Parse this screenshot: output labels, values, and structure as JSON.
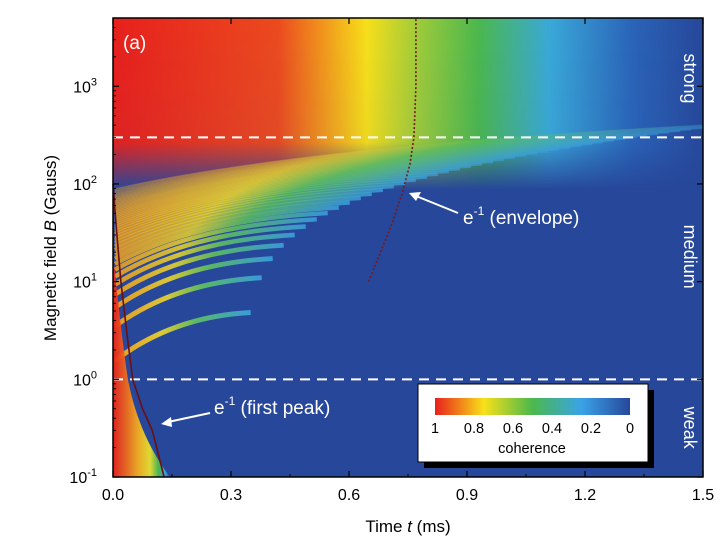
{
  "chart_data": {
    "type": "heatmap",
    "panel_label": "(a)",
    "xlabel": {
      "pre": "Time ",
      "var": "t",
      "post": " (ms)"
    },
    "ylabel": {
      "pre": "Magnetic field ",
      "var": "B",
      "post": " (Gauss)"
    },
    "xlim": [
      0,
      1.5
    ],
    "ylim": [
      0.1,
      5000
    ],
    "yscale": "log",
    "x_ticks": [
      {
        "value": 0.0,
        "label": "0.0"
      },
      {
        "value": 0.3,
        "label": "0.3"
      },
      {
        "value": 0.6,
        "label": "0.6"
      },
      {
        "value": 0.9,
        "label": "0.9"
      },
      {
        "value": 1.2,
        "label": "1.2"
      },
      {
        "value": 1.5,
        "label": "1.5"
      }
    ],
    "y_ticks": [
      {
        "value": 0.1,
        "base": "10",
        "exp": "-1"
      },
      {
        "value": 1,
        "base": "10",
        "exp": "0"
      },
      {
        "value": 10,
        "base": "10",
        "exp": "1"
      },
      {
        "value": 100,
        "base": "10",
        "exp": "2"
      },
      {
        "value": 1000,
        "base": "10",
        "exp": "3"
      }
    ],
    "regime_boundaries": [
      1,
      300
    ],
    "regions": [
      {
        "label": "strong",
        "y": 1200
      },
      {
        "label": "medium",
        "y": 18
      },
      {
        "label": "weak",
        "y": 0.32
      }
    ],
    "annotations": {
      "envelope": {
        "base": "e",
        "exp": "-1",
        "text": " (envelope)",
        "arrow_tip": [
          0.765,
          150
        ]
      },
      "first_peak": {
        "base": "e",
        "exp": "-1",
        "text": " (first peak)",
        "arrow_tip": [
          0.12,
          0.22
        ]
      }
    },
    "envelope_curve": [
      [
        0.65,
        10
      ],
      [
        0.68,
        20
      ],
      [
        0.71,
        40
      ],
      [
        0.735,
        80
      ],
      [
        0.755,
        160
      ],
      [
        0.765,
        300
      ],
      [
        0.77,
        1000
      ],
      [
        0.77,
        5000
      ]
    ],
    "first_peak_curve": [
      [
        0.0,
        100
      ],
      [
        0.01,
        30
      ],
      [
        0.02,
        10
      ],
      [
        0.035,
        3
      ],
      [
        0.05,
        1
      ],
      [
        0.075,
        0.5
      ],
      [
        0.1,
        0.3
      ],
      [
        0.13,
        0.1
      ]
    ],
    "colorbar": {
      "label": "coherence",
      "ticks": [
        {
          "value": 1,
          "label": "1"
        },
        {
          "value": 0.8,
          "label": "0.8"
        },
        {
          "value": 0.6,
          "label": "0.6"
        },
        {
          "value": 0.4,
          "label": "0.4"
        },
        {
          "value": 0.2,
          "label": "0.2"
        },
        {
          "value": 0,
          "label": "0"
        }
      ],
      "colors": [
        "#e8201c",
        "#f8e019",
        "#4bb84d",
        "#3aa3e8",
        "#27479a"
      ]
    },
    "colors": {
      "background": "#27479a",
      "envelope_curve": "#7a1818",
      "first_peak_curve": "#6b1010",
      "dashed_lines": "#ffffff"
    }
  }
}
